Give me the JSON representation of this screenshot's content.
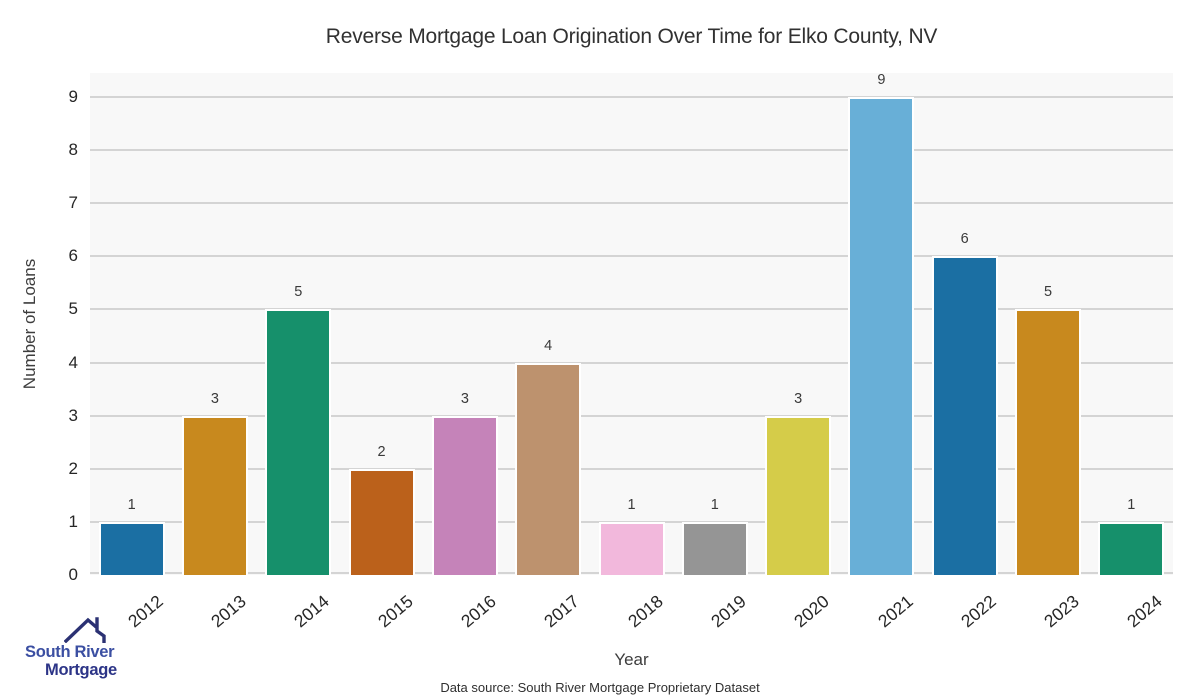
{
  "title": "Reverse Mortgage Loan Origination Over Time for Elko County, NV",
  "chart_data": {
    "type": "bar",
    "title": "Reverse Mortgage Loan Origination Over Time for Elko County, NV",
    "categories": [
      "2012",
      "2013",
      "2014",
      "2015",
      "2016",
      "2017",
      "2018",
      "2019",
      "2020",
      "2021",
      "2022",
      "2023",
      "2024"
    ],
    "values": [
      1,
      3,
      5,
      2,
      3,
      4,
      1,
      1,
      3,
      9,
      6,
      5,
      1
    ],
    "bar_colors": [
      "#1b6fa3",
      "#c8891e",
      "#16906b",
      "#bb611b",
      "#c583b9",
      "#bd926e",
      "#f2b8dc",
      "#959595",
      "#d5cc49",
      "#68afd7",
      "#1b6fa3",
      "#c8891e",
      "#16906b"
    ],
    "xlabel": "Year",
    "ylabel": "Number of Loans",
    "ylim": [
      0,
      9
    ],
    "yticks": [
      0,
      1,
      2,
      3,
      4,
      5,
      6,
      7,
      8,
      9
    ],
    "grid": "horizontal",
    "legend": "none",
    "plot_bg_color": "#f8f8f8",
    "grid_color": "#d4d4d4"
  },
  "footer": {
    "source_note": "Data source: South River Mortgage Proprietary Dataset"
  },
  "logo": {
    "line1": "South River",
    "line2": "Mortgage",
    "roof_color": "#2b3173",
    "text_color_line1": "#3b4fa2",
    "text_color_line2": "#2c3487"
  }
}
